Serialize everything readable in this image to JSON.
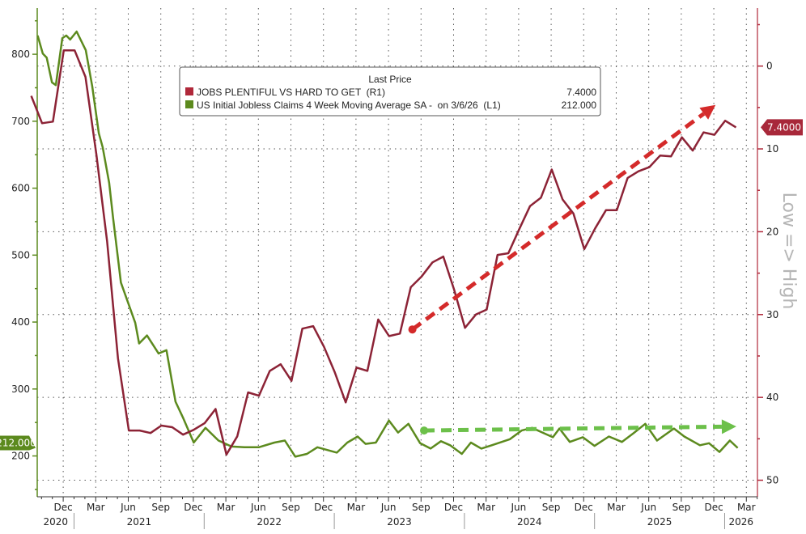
{
  "chart_data": {
    "type": "line",
    "legend": {
      "title": "Last Price",
      "placement": "top-center",
      "entries": [
        {
          "name": "JOBS PLENTIFUL VS HARD TO GET  (R1)",
          "last": "7.4000",
          "color": "#b0283a"
        },
        {
          "name": "US Initial Jobless Claims 4 Week Moving Average SA -  on 3/6/26  (L1)",
          "last": "212.000",
          "color": "#5c8a1e"
        }
      ]
    },
    "left_axis": {
      "range": [
        139,
        869
      ],
      "ticks": [
        200,
        300,
        400,
        500,
        600,
        700,
        800
      ],
      "tick_labels": [
        "200",
        "300",
        "400",
        "500",
        "600",
        "700",
        "800"
      ],
      "color": "#5c8a1e"
    },
    "right_axis": {
      "range": [
        -7,
        52
      ],
      "inverted": true,
      "ticks": [
        0,
        10,
        20,
        30,
        40,
        50
      ],
      "tick_labels": [
        "0",
        "10",
        "20",
        "30",
        "40",
        "50"
      ],
      "label": "Low => High",
      "color": "#b0283a"
    },
    "x_axis": {
      "range": [
        2020.717,
        2026.252
      ],
      "month_labels": [
        "Dec",
        "Mar",
        "Jun",
        "Sep",
        "Dec",
        "Mar",
        "Jun",
        "Sep",
        "Dec",
        "Mar",
        "Jun",
        "Sep",
        "Dec",
        "Mar",
        "Jun",
        "Sep",
        "Dec",
        "Mar",
        "Jun",
        "Sep",
        "Dec",
        "Mar"
      ],
      "year_labels": [
        "2020",
        "2021",
        "2022",
        "2023",
        "2024",
        "2025",
        "2026"
      ]
    },
    "grid": true,
    "series": [
      {
        "name": "JOBS PLENTIFUL VS HARD TO GET",
        "axis": "right",
        "color": "#8c2336",
        "start": "2020-09",
        "frequency": "monthly",
        "values": [
          3.6,
          6.9,
          6.7,
          -1.9,
          -1.9,
          1.3,
          10.6,
          21.2,
          35.3,
          44.0,
          44.0,
          44.3,
          43.4,
          43.6,
          44.5,
          43.9,
          43.1,
          41.4,
          46.9,
          44.7,
          39.4,
          39.8,
          36.8,
          36.0,
          38.0,
          31.7,
          31.4,
          33.9,
          37.0,
          40.6,
          36.4,
          36.8,
          30.6,
          32.6,
          32.3,
          26.7,
          25.4,
          23.7,
          23.0,
          27.0,
          31.6,
          30.0,
          29.4,
          22.8,
          22.6,
          19.7,
          16.9,
          15.9,
          12.5,
          16.1,
          17.8,
          22.1,
          19.6,
          17.4,
          17.4,
          13.5,
          12.7,
          12.2,
          10.8,
          10.9,
          8.6,
          10.2,
          8.0,
          8.3,
          6.6,
          7.4
        ],
        "last_value_tag": "7.4000"
      },
      {
        "name": "US Initial Jobless Claims 4 Week Moving Average SA",
        "axis": "left",
        "color": "#5c8a1e",
        "points": [
          [
            2020.72,
            828
          ],
          [
            2020.76,
            801
          ],
          [
            2020.79,
            795
          ],
          [
            2020.83,
            758
          ],
          [
            2020.86,
            754
          ],
          [
            2020.91,
            824
          ],
          [
            2020.94,
            828
          ],
          [
            2020.97,
            822
          ],
          [
            2021.02,
            834
          ],
          [
            2021.09,
            806
          ],
          [
            2021.14,
            752
          ],
          [
            2021.19,
            682
          ],
          [
            2021.22,
            661
          ],
          [
            2021.27,
            608
          ],
          [
            2021.3,
            556
          ],
          [
            2021.36,
            459
          ],
          [
            2021.47,
            399
          ],
          [
            2021.5,
            368
          ],
          [
            2021.56,
            380
          ],
          [
            2021.65,
            353
          ],
          [
            2021.71,
            358
          ],
          [
            2021.78,
            281
          ],
          [
            2021.84,
            256
          ],
          [
            2021.92,
            220
          ],
          [
            2022.01,
            242
          ],
          [
            2022.11,
            223
          ],
          [
            2022.21,
            214
          ],
          [
            2022.31,
            213
          ],
          [
            2022.42,
            213
          ],
          [
            2022.54,
            220
          ],
          [
            2022.62,
            223
          ],
          [
            2022.7,
            199
          ],
          [
            2022.79,
            203
          ],
          [
            2022.87,
            213
          ],
          [
            2023.02,
            205
          ],
          [
            2023.1,
            220
          ],
          [
            2023.18,
            229
          ],
          [
            2023.24,
            218
          ],
          [
            2023.32,
            220
          ],
          [
            2023.42,
            253
          ],
          [
            2023.49,
            235
          ],
          [
            2023.57,
            248
          ],
          [
            2023.66,
            219
          ],
          [
            2023.74,
            211
          ],
          [
            2023.82,
            222
          ],
          [
            2023.89,
            216
          ],
          [
            2023.98,
            203
          ],
          [
            2024.05,
            220
          ],
          [
            2024.13,
            211
          ],
          [
            2024.21,
            216
          ],
          [
            2024.35,
            225
          ],
          [
            2024.44,
            238
          ],
          [
            2024.52,
            242
          ],
          [
            2024.61,
            234
          ],
          [
            2024.68,
            228
          ],
          [
            2024.73,
            241
          ],
          [
            2024.81,
            221
          ],
          [
            2024.91,
            228
          ],
          [
            2025.0,
            215
          ],
          [
            2025.11,
            229
          ],
          [
            2025.21,
            221
          ],
          [
            2025.3,
            234
          ],
          [
            2025.39,
            248
          ],
          [
            2025.48,
            223
          ],
          [
            2025.61,
            241
          ],
          [
            2025.69,
            229
          ],
          [
            2025.81,
            216
          ],
          [
            2025.88,
            219
          ],
          [
            2025.96,
            206
          ],
          [
            2026.04,
            223
          ],
          [
            2026.1,
            212
          ]
        ],
        "last_value_tag": "212.000"
      }
    ],
    "annotations": [
      {
        "type": "dashed-arrow",
        "axis": "right",
        "color": "#d42a2a",
        "from": [
          2023.6,
          31.8
        ],
        "to": [
          2025.93,
          4.7
        ]
      },
      {
        "type": "dashed-arrow",
        "axis": "left",
        "color": "#6cc04a",
        "from": [
          2023.69,
          238
        ],
        "to": [
          2026.09,
          244
        ]
      }
    ]
  }
}
